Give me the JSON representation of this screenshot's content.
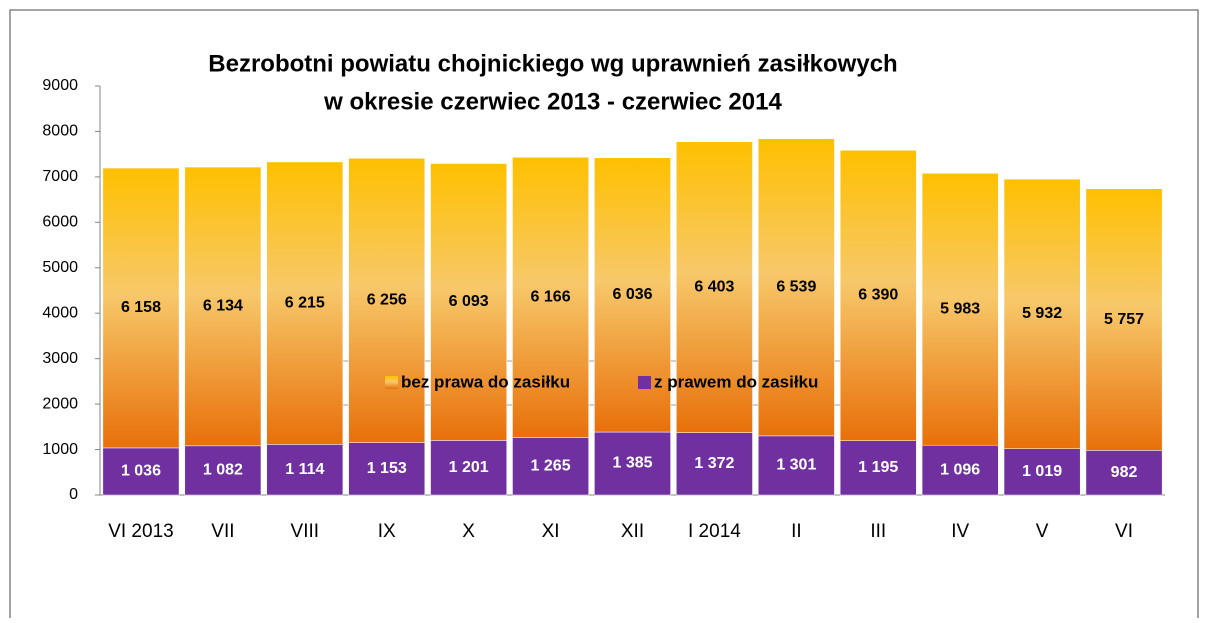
{
  "chart_data": {
    "type": "stacked_bar",
    "title": [
      "Bezrobotni powiatu chojnickiego wg uprawnień zasiłkowych",
      "w okresie czerwiec 2013 - czerwiec 2014"
    ],
    "categories": [
      "VI 2013",
      "VII",
      "VIII",
      "IX",
      "X",
      "XI",
      "XII",
      "I 2014",
      "II",
      "III",
      "IV",
      "V",
      "VI"
    ],
    "series": [
      {
        "name": "z prawem do zasiłku",
        "color": "#7030a0",
        "values": [
          1036,
          1082,
          1114,
          1153,
          1201,
          1265,
          1385,
          1372,
          1301,
          1195,
          1096,
          1019,
          982
        ],
        "value_labels": [
          "1 036",
          "1 082",
          "1 114",
          "1 153",
          "1 201",
          "1 265",
          "1 385",
          "1 372",
          "1 301",
          "1 195",
          "1 096",
          "1 019",
          "982"
        ]
      },
      {
        "name": "bez prawa do zasiłku",
        "color": "#e8700a",
        "values": [
          6158,
          6134,
          6215,
          6256,
          6093,
          6166,
          6036,
          6403,
          6539,
          6390,
          5983,
          5932,
          5757
        ],
        "value_labels": [
          "6 158",
          "6 134",
          "6 215",
          "6 256",
          "6 093",
          "6 166",
          "6 036",
          "6 403",
          "6 539",
          "6 390",
          "5 983",
          "5 932",
          "5 757"
        ]
      }
    ],
    "legend_order": [
      "bez prawa do zasiłku",
      "z prawem do zasiłku"
    ],
    "ylim": [
      0,
      9000
    ],
    "yticks": [
      0,
      1000,
      2000,
      3000,
      4000,
      5000,
      6000,
      7000,
      8000,
      9000
    ],
    "grid": false
  }
}
